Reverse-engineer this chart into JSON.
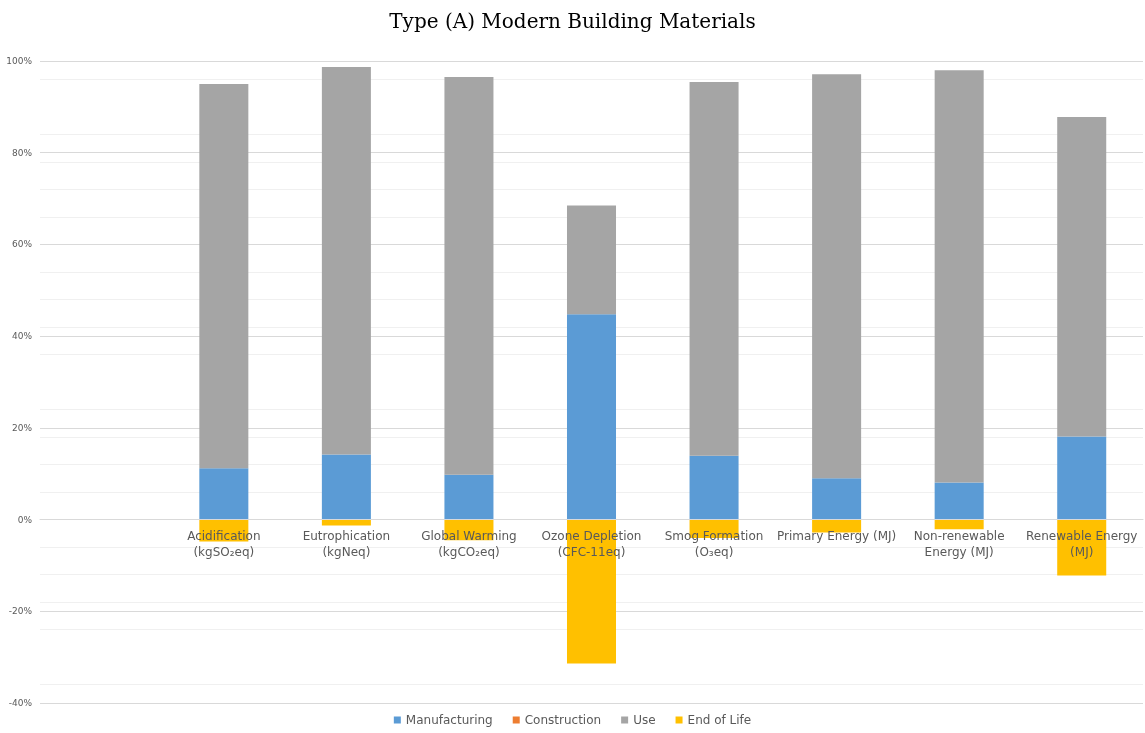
{
  "chart_data": {
    "type": "bar",
    "title": "Type (A) Modern Building Materials",
    "categories": [
      null,
      "Acidification\n(kgSO₂eq)",
      "Eutrophication\n(kgNeq)",
      "Global Warming\n(kgCO₂eq)",
      "Ozone Depletion\n(CFC-11eq)",
      "Smog Formation\n(O₃eq)",
      "Primary Energy (MJ)",
      "Non-renewable\nEnergy (MJ)",
      "Renewable Energy\n(MJ)"
    ],
    "stacked": true,
    "series": [
      {
        "name": "Manufacturing",
        "color": "#5b9bd5",
        "values": [
          null,
          11.2,
          14.2,
          9.8,
          44.8,
          13.9,
          9.0,
          8.1,
          18.1
        ]
      },
      {
        "name": "Construction",
        "color": "#ed7d31",
        "values": [
          null,
          0,
          0,
          0,
          0,
          0,
          0,
          0,
          0
        ]
      },
      {
        "name": "Use",
        "color": "#a5a5a5",
        "values": [
          null,
          83.8,
          84.5,
          86.7,
          23.7,
          81.5,
          88.1,
          89.9,
          69.7
        ]
      },
      {
        "name": "End of Life",
        "color": "#ffc000",
        "values": [
          null,
          -4.8,
          -1.3,
          -4.5,
          -31.4,
          -4.0,
          -2.8,
          -2.1,
          -12.2
        ]
      }
    ],
    "ylim": [
      -40,
      100
    ],
    "yticks": [
      {
        "value": -40,
        "label": "-40%"
      },
      {
        "value": -20,
        "label": "-20%"
      },
      {
        "value": 0,
        "label": "0%"
      },
      {
        "value": 20,
        "label": "20%"
      },
      {
        "value": 40,
        "label": "40%"
      },
      {
        "value": 60,
        "label": "60%"
      },
      {
        "value": 80,
        "label": "80%"
      },
      {
        "value": 100,
        "label": "100%"
      }
    ],
    "grid": true,
    "legend": "bottom"
  }
}
